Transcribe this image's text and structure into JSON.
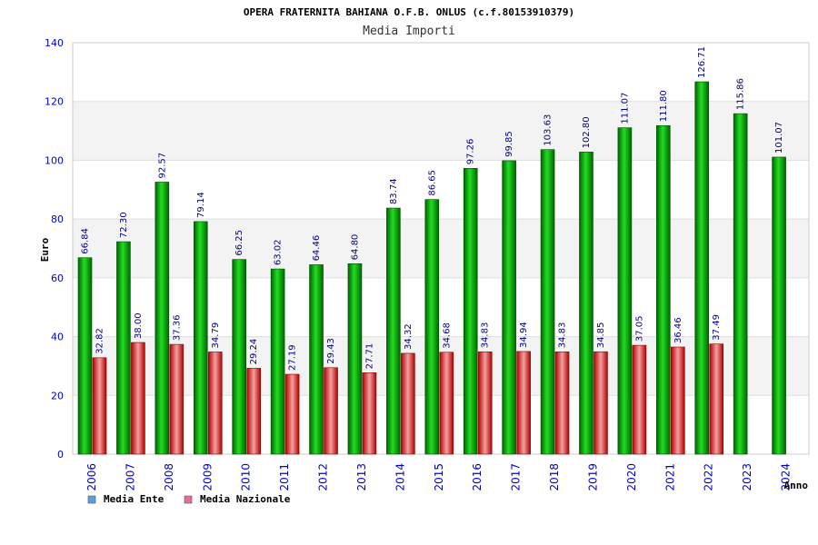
{
  "chart_data": {
    "type": "bar",
    "title": "OPERA FRATERNITA BAHIANA O.F.B. ONLUS (c.f.80153910379)",
    "subtitle": "Media Importi",
    "xlabel": "Anno",
    "ylabel": "Euro",
    "ylim": [
      0,
      140
    ],
    "yticks": [
      0,
      20,
      40,
      60,
      80,
      100,
      120,
      140
    ],
    "categories": [
      "2006",
      "2007",
      "2008",
      "2009",
      "2010",
      "2011",
      "2012",
      "2013",
      "2014",
      "2015",
      "2016",
      "2017",
      "2018",
      "2019",
      "2020",
      "2021",
      "2022",
      "2023",
      "2024"
    ],
    "series": [
      {
        "name": "Media Ente",
        "color": "#00a000",
        "values": [
          66.84,
          72.3,
          92.57,
          79.14,
          66.25,
          63.02,
          64.46,
          64.8,
          83.74,
          86.65,
          97.26,
          99.85,
          103.63,
          102.8,
          111.07,
          111.8,
          126.71,
          115.86,
          101.07
        ],
        "labels": [
          "66.84",
          "72.30",
          "92.57",
          "79.14",
          "66.25",
          "63.02",
          "64.46",
          "64.80",
          "83.74",
          "86.65",
          "97.26",
          "99.85",
          "103.63",
          "102.80",
          "111.07",
          "111.80",
          "126.71",
          "115.86",
          "101.07"
        ]
      },
      {
        "name": "Media Nazionale",
        "color": "#e02020",
        "values": [
          32.82,
          38.0,
          37.36,
          34.79,
          29.24,
          27.19,
          29.43,
          27.71,
          34.32,
          34.68,
          34.83,
          34.94,
          34.83,
          34.85,
          37.05,
          36.46,
          37.49,
          null,
          null
        ],
        "labels": [
          "32.82",
          "38.00",
          "37.36",
          "34.79",
          "29.24",
          "27.19",
          "29.43",
          "27.71",
          "34.32",
          "34.68",
          "34.83",
          "34.94",
          "34.83",
          "34.85",
          "37.05",
          "36.46",
          "37.49",
          "",
          ""
        ]
      }
    ],
    "legend": [
      {
        "label": "Media Ente",
        "color": "#5aa0e6"
      },
      {
        "label": "Media Nazionale",
        "color": "#e0709a"
      }
    ],
    "grid": true
  }
}
